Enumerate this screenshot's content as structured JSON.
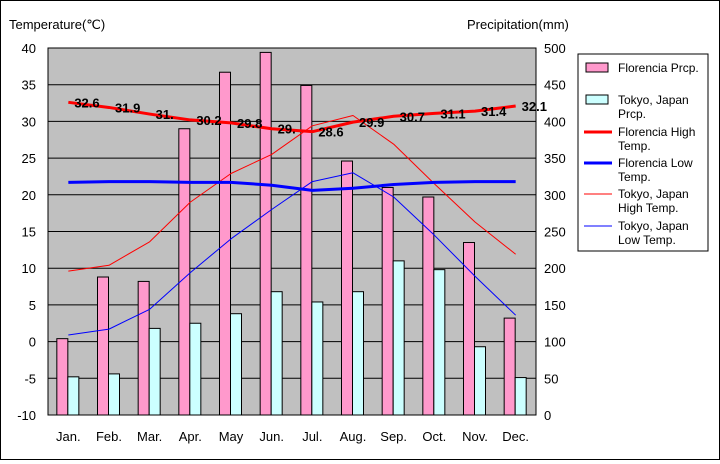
{
  "chart_data": {
    "type": "bar",
    "categories": [
      "Jan.",
      "Feb.",
      "Mar.",
      "Apr.",
      "May",
      "Jun.",
      "Jul.",
      "Aug.",
      "Sep.",
      "Oct.",
      "Nov.",
      "Dec."
    ],
    "ylabel_left": "Temperature(℃)",
    "ylabel_right": "Precipitation(mm)",
    "ylim_left": [
      -10,
      40
    ],
    "yticks_left": [
      -10,
      -5,
      0,
      5,
      10,
      15,
      20,
      25,
      30,
      35,
      40
    ],
    "ylim_right": [
      0,
      500
    ],
    "yticks_right": [
      0,
      50,
      100,
      150,
      200,
      250,
      300,
      350,
      400,
      450,
      500
    ],
    "grid": "horizontal",
    "legend_position": "right",
    "bar_series": [
      {
        "name": "Florencia Prcp.",
        "axis": "right",
        "color": "#ff99cc",
        "values": [
          104,
          188,
          182,
          390,
          467,
          494,
          449,
          346,
          310,
          297,
          235,
          132
        ]
      },
      {
        "name": "Tokyo, Japan Prcp.",
        "axis": "right",
        "color": "#ccffff",
        "values": [
          52,
          56,
          118,
          125,
          138,
          168,
          154,
          168,
          210,
          198,
          93,
          51
        ]
      }
    ],
    "line_series": [
      {
        "name": "Florencia High Temp.",
        "axis": "left",
        "color": "#ff0000",
        "width": 3,
        "values": [
          32.6,
          31.9,
          31,
          30.2,
          29.8,
          29,
          28.6,
          29.9,
          30.7,
          31.1,
          31.4,
          32.1
        ],
        "labels": [
          "32.6",
          "31.9",
          "31.",
          "30.2",
          "29.8",
          "29.",
          "28.6",
          "29.9",
          "30.7",
          "31.1",
          "31.4",
          "32.1"
        ]
      },
      {
        "name": "Florencia Low Temp.",
        "axis": "left",
        "color": "#0000ff",
        "width": 3,
        "values": [
          21.7,
          21.8,
          21.8,
          21.7,
          21.7,
          21.3,
          20.6,
          20.9,
          21.4,
          21.7,
          21.8,
          21.8
        ]
      },
      {
        "name": "Tokyo, Japan High Temp.",
        "axis": "left",
        "color": "#ff0000",
        "width": 1,
        "values": [
          9.6,
          10.4,
          13.6,
          19.0,
          22.9,
          25.5,
          29.4,
          30.8,
          26.9,
          21.5,
          16.3,
          11.9
        ]
      },
      {
        "name": "Tokyo, Japan Low Temp.",
        "axis": "left",
        "color": "#0000ff",
        "width": 1,
        "values": [
          0.9,
          1.7,
          4.4,
          9.4,
          14.0,
          18.0,
          21.8,
          23.0,
          19.7,
          14.5,
          8.9,
          3.6
        ]
      }
    ],
    "legend": [
      {
        "kind": "bar",
        "color": "#ff99cc",
        "lines": [
          "Florencia Prcp."
        ]
      },
      {
        "kind": "bar",
        "color": "#ccffff",
        "lines": [
          "Tokyo, Japan",
          "Prcp."
        ]
      },
      {
        "kind": "line",
        "color": "#ff0000",
        "width": 3,
        "lines": [
          "Florencia High",
          "Temp."
        ]
      },
      {
        "kind": "line",
        "color": "#0000ff",
        "width": 3,
        "lines": [
          "Florencia Low",
          "Temp."
        ]
      },
      {
        "kind": "line",
        "color": "#ff0000",
        "width": 1,
        "lines": [
          "Tokyo, Japan",
          "High Temp."
        ]
      },
      {
        "kind": "line",
        "color": "#0000ff",
        "width": 1,
        "lines": [
          "Tokyo, Japan",
          "Low Temp."
        ]
      }
    ]
  },
  "colors": {
    "plot_background": "#c0c0c0",
    "gridline": "#000000"
  }
}
